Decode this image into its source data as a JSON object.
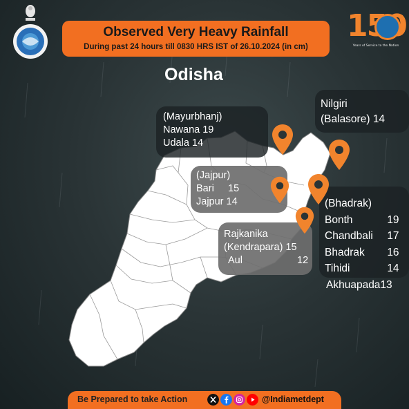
{
  "banner": {
    "title": "Observed Very Heavy Rainfall",
    "subtitle": "During past 24 hours till 0830 HRS IST of 26.10.2024 (in cm)"
  },
  "state_title": "Odisha",
  "logo150": {
    "number": "150",
    "tagline": "Years of Service to the Nation"
  },
  "mayurbhanj": {
    "district": "(Mayurbhanj)",
    "stations": [
      {
        "name": "Nawana",
        "value": "19"
      },
      {
        "name": "Udala",
        "value": "14"
      }
    ]
  },
  "nilgiri": {
    "line1": "Nilgiri",
    "line2": "(Balasore)",
    "value": "14"
  },
  "jajpur": {
    "district": "(Jajpur)",
    "stations": [
      {
        "name": "Bari",
        "value": "15"
      },
      {
        "name": "Jajpur",
        "value": "14"
      }
    ]
  },
  "bhadrak": {
    "district": "(Bhadrak)",
    "stations": [
      {
        "name": "Bonth",
        "value": "19"
      },
      {
        "name": "Chandbali",
        "value": "17"
      },
      {
        "name": "Bhadrak",
        "value": "16"
      },
      {
        "name": "Tihidi",
        "value": "14"
      }
    ],
    "extra": {
      "name": "Akhuapada",
      "value": "13"
    }
  },
  "kendrapara": {
    "line1": "Rajkanika",
    "line2": "(Kendrapara)",
    "line2_value": "15",
    "line3": "Aul",
    "line3_value": "12"
  },
  "footer": {
    "cta": "Be Prepared to take Action",
    "handle": "@Indiametdept"
  },
  "icons": [
    "ashoka-emblem-icon",
    "imd-logo-icon",
    "map-pin-icon",
    "x-icon",
    "facebook-icon",
    "instagram-icon",
    "youtube-icon"
  ],
  "colors": {
    "accent": "#f26f21",
    "map_fill": "#ffffff",
    "background": "#2a3436",
    "pin": "#f1842d"
  }
}
